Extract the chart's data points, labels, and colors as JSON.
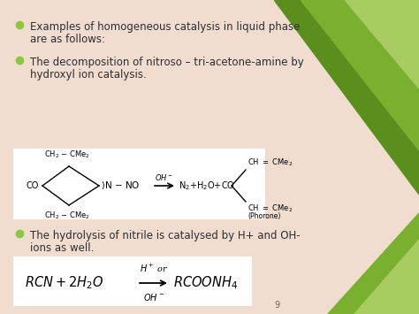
{
  "bg_color": "#f0ddd0",
  "bullet_color": "#8dc63f",
  "text_color": "#2d2d2d",
  "font_size_bullet": 8.5,
  "bullet1_line1": "Examples of homogeneous catalysis in liquid phase",
  "bullet1_line2": "are as follows:",
  "bullet2_line1": "The decomposition of nitroso – tri-acetone-amine by",
  "bullet2_line2": "hydroxyl ion catalysis.",
  "bullet3_line1": "The hydrolysis of nitrile is catalysed by H+ and OH-",
  "bullet3_line2": "ions as well.",
  "green1_color": "#5a8f1e",
  "green2_color": "#7ab030",
  "green3_color": "#a8cc60",
  "white_box_color": "#ffffff",
  "page_num": "9"
}
